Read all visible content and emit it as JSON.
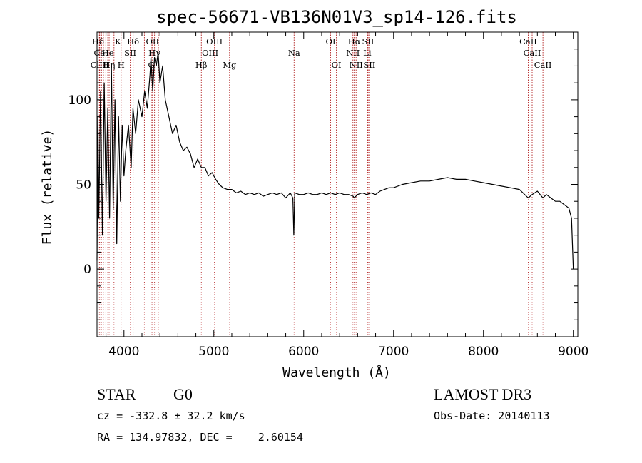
{
  "chart_data": {
    "type": "line",
    "title": "spec-56671-VB136N01V3_sp14-126.fits",
    "xlabel": "Wavelength (Å)",
    "ylabel": "Flux (relative)",
    "xlim": [
      3700,
      9050
    ],
    "ylim": [
      -40,
      140
    ],
    "xticks": [
      "4000",
      "5000",
      "6000",
      "7000",
      "8000",
      "9000"
    ],
    "yticks": [
      "0",
      "50",
      "100"
    ],
    "line_color": "#000000",
    "marker_color": "#b22222",
    "series": [
      {
        "name": "flux",
        "x": [
          3700,
          3710,
          3720,
          3740,
          3760,
          3780,
          3800,
          3820,
          3840,
          3860,
          3880,
          3900,
          3920,
          3940,
          3960,
          3980,
          4000,
          4020,
          4050,
          4080,
          4100,
          4130,
          4160,
          4200,
          4230,
          4260,
          4290,
          4300,
          4320,
          4340,
          4360,
          4380,
          4400,
          4430,
          4460,
          4500,
          4540,
          4580,
          4620,
          4660,
          4700,
          4740,
          4780,
          4820,
          4861,
          4900,
          4940,
          4980,
          5020,
          5060,
          5100,
          5150,
          5200,
          5250,
          5300,
          5350,
          5400,
          5450,
          5500,
          5550,
          5600,
          5650,
          5700,
          5750,
          5800,
          5850,
          5880,
          5890,
          5900,
          5950,
          6000,
          6050,
          6100,
          6150,
          6200,
          6250,
          6300,
          6350,
          6400,
          6450,
          6500,
          6550,
          6563,
          6600,
          6650,
          6700,
          6750,
          6800,
          6850,
          6900,
          6950,
          7000,
          7100,
          7200,
          7300,
          7400,
          7500,
          7600,
          7700,
          7800,
          7900,
          8000,
          8100,
          8200,
          8300,
          8400,
          8498,
          8542,
          8600,
          8662,
          8700,
          8750,
          8800,
          8850,
          8900,
          8950,
          8980,
          9000
        ],
        "y": [
          5,
          90,
          30,
          105,
          20,
          110,
          40,
          95,
          30,
          120,
          35,
          100,
          15,
          90,
          40,
          85,
          55,
          70,
          85,
          60,
          95,
          80,
          100,
          90,
          105,
          95,
          115,
          125,
          105,
          125,
          120,
          128,
          110,
          120,
          100,
          90,
          80,
          85,
          75,
          70,
          72,
          68,
          60,
          65,
          60,
          60,
          55,
          57,
          53,
          50,
          48,
          47,
          47,
          45,
          46,
          44,
          45,
          44,
          45,
          43,
          44,
          45,
          44,
          45,
          42,
          45,
          42,
          20,
          45,
          44,
          44,
          45,
          44,
          44,
          45,
          44,
          45,
          44,
          45,
          44,
          44,
          43,
          42,
          44,
          45,
          44,
          45,
          44,
          46,
          47,
          48,
          48,
          50,
          51,
          52,
          52,
          53,
          54,
          53,
          53,
          52,
          51,
          50,
          49,
          48,
          47,
          42,
          44,
          46,
          42,
          44,
          42,
          40,
          40,
          38,
          36,
          30,
          0
        ]
      }
    ],
    "lines": [
      {
        "label": "Hδ",
        "wave": 3712,
        "row": 1
      },
      {
        "label": "K",
        "wave": 3934,
        "row": 1
      },
      {
        "label": "Hδ",
        "wave": 4102,
        "row": 1
      },
      {
        "label": "OII",
        "wave": 4317,
        "row": 1
      },
      {
        "label": "OIII",
        "wave": 5007,
        "row": 1
      },
      {
        "label": "OI",
        "wave": 6300,
        "row": 1
      },
      {
        "label": "Hα",
        "wave": 6563,
        "row": 1
      },
      {
        "label": "SII",
        "wave": 6716,
        "row": 1
      },
      {
        "label": "CaII",
        "wave": 8498,
        "row": 1
      },
      {
        "label": "Ce",
        "wave": 3726,
        "row": 2
      },
      {
        "label": "He",
        "wave": 3820,
        "row": 2
      },
      {
        "label": "SII",
        "wave": 4070,
        "row": 2
      },
      {
        "label": "Hγ",
        "wave": 4340,
        "row": 2
      },
      {
        "label": "OIII",
        "wave": 4959,
        "row": 2
      },
      {
        "label": "Na",
        "wave": 5893,
        "row": 2
      },
      {
        "label": "NII",
        "wave": 6548,
        "row": 2
      },
      {
        "label": "Li",
        "wave": 6708,
        "row": 2
      },
      {
        "label": "CaII",
        "wave": 8542,
        "row": 2
      },
      {
        "label": "ClIII",
        "wave": 3730,
        "row": 3
      },
      {
        "label": "Hη",
        "wave": 3835,
        "row": 3
      },
      {
        "label": "H",
        "wave": 3968,
        "row": 3
      },
      {
        "label": "G",
        "wave": 4304,
        "row": 3
      },
      {
        "label": "Hβ",
        "wave": 4861,
        "row": 3
      },
      {
        "label": "Mg",
        "wave": 5175,
        "row": 3
      },
      {
        "label": "OI",
        "wave": 6364,
        "row": 3
      },
      {
        "label": "NII",
        "wave": 6583,
        "row": 3
      },
      {
        "label": "SII",
        "wave": 6731,
        "row": 3
      },
      {
        "label": "CaII",
        "wave": 8662,
        "row": 3
      }
    ],
    "extra_lines": [
      3750,
      3771,
      3798,
      3889,
      4227,
      4383,
      6717
    ]
  },
  "info": {
    "class": "STAR",
    "subclass": "G0",
    "cz": "cz = -332.8 ± 32.2 km/s",
    "radec": "RA = 134.97832, DEC =    2.60154",
    "survey": "LAMOST DR3",
    "obsdate": "Obs-Date: 20140113"
  }
}
